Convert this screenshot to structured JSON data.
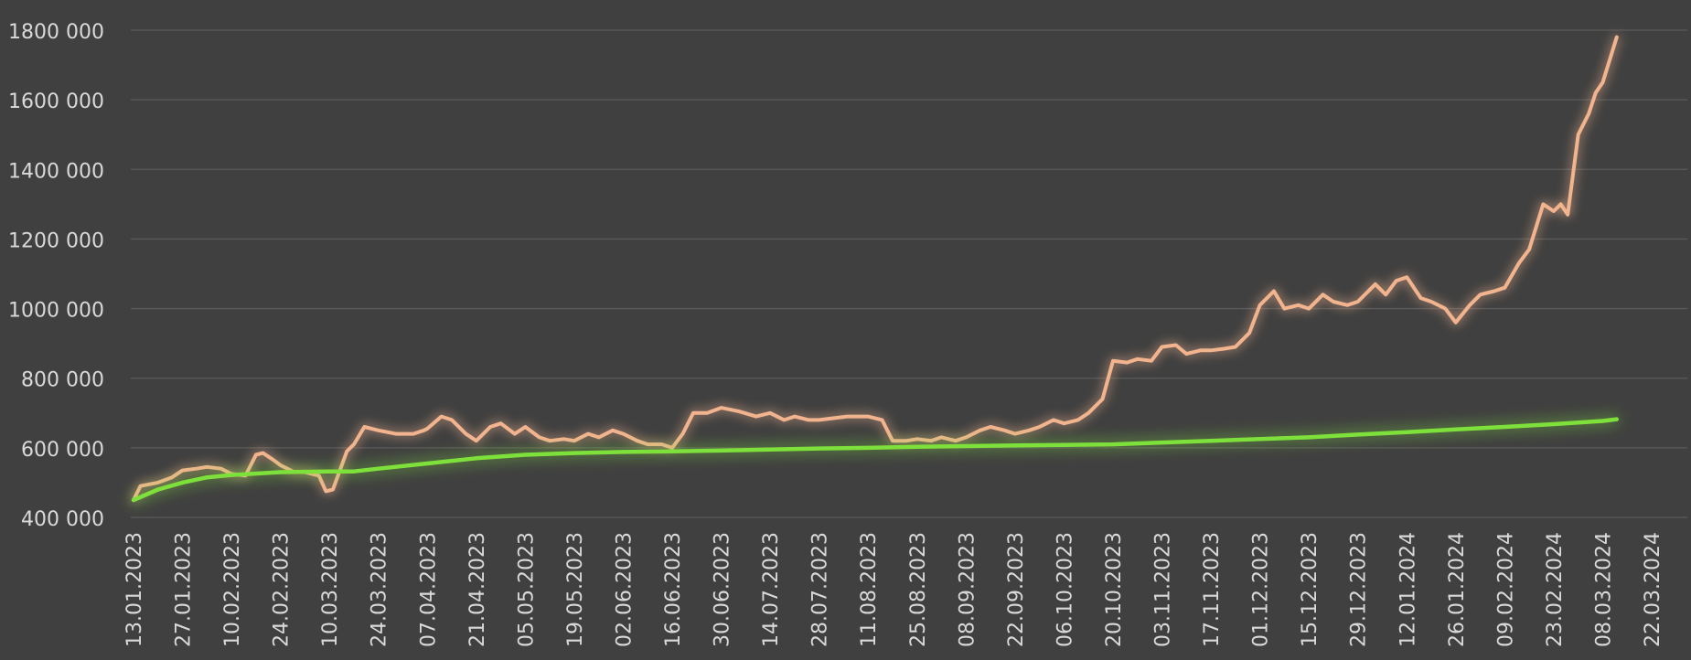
{
  "chart_data": {
    "type": "line",
    "title": "",
    "xlabel": "",
    "ylabel": "",
    "ylim": [
      400000,
      1800000
    ],
    "grid": true,
    "legend": "none",
    "colors": {
      "background": "#404040",
      "grid": "#5a5a5a",
      "tick_text": "#d9d9d9",
      "series_portfolio": "#f2b48e",
      "series_invested": "#7ee03a"
    },
    "y_ticks": [
      {
        "value": 400000,
        "label": "400 000"
      },
      {
        "value": 600000,
        "label": "600 000"
      },
      {
        "value": 800000,
        "label": "800 000"
      },
      {
        "value": 1000000,
        "label": "1000 000"
      },
      {
        "value": 1200000,
        "label": "1200 000"
      },
      {
        "value": 1400000,
        "label": "1400 000"
      },
      {
        "value": 1600000,
        "label": "1600 000"
      },
      {
        "value": 1800000,
        "label": "1800 000"
      }
    ],
    "x_ticks": [
      "13.01.2023",
      "27.01.2023",
      "10.02.2023",
      "24.02.2023",
      "10.03.2023",
      "24.03.2023",
      "07.04.2023",
      "21.04.2023",
      "05.05.2023",
      "19.05.2023",
      "02.06.2023",
      "16.06.2023",
      "30.06.2023",
      "14.07.2023",
      "28.07.2023",
      "11.08.2023",
      "25.08.2023",
      "08.09.2023",
      "22.09.2023",
      "06.10.2023",
      "20.10.2023",
      "03.11.2023",
      "17.11.2023",
      "01.12.2023",
      "15.12.2023",
      "29.12.2023",
      "12.01.2024",
      "26.01.2024",
      "09.02.2024",
      "23.02.2024",
      "08.03.2024",
      "22.03.2024"
    ],
    "series": [
      {
        "x": [
          "13.01.2023",
          "15.01.2023",
          "20.01.2023",
          "24.01.2023",
          "27.01.2023",
          "31.01.2023",
          "03.02.2023",
          "07.02.2023",
          "10.02.2023",
          "14.02.2023",
          "17.02.2023",
          "19.02.2023",
          "22.02.2023",
          "24.02.2023",
          "28.02.2023",
          "03.03.2023",
          "07.03.2023",
          "09.03.2023",
          "11.03.2023",
          "15.03.2023",
          "17.03.2023",
          "20.03.2023",
          "24.03.2023",
          "29.03.2023",
          "03.04.2023",
          "06.04.2023",
          "07.04.2023",
          "11.04.2023",
          "14.04.2023",
          "18.04.2023",
          "21.04.2023",
          "25.04.2023",
          "28.04.2023",
          "02.05.2023",
          "05.05.2023",
          "09.05.2023",
          "12.05.2023",
          "16.05.2023",
          "19.05.2023",
          "23.05.2023",
          "26.05.2023",
          "30.05.2023",
          "02.06.2023",
          "06.06.2023",
          "09.06.2023",
          "13.06.2023",
          "16.06.2023",
          "19.06.2023",
          "22.06.2023",
          "26.06.2023",
          "30.06.2023",
          "05.07.2023",
          "10.07.2023",
          "14.07.2023",
          "18.07.2023",
          "21.07.2023",
          "25.07.2023",
          "28.07.2023",
          "01.08.2023",
          "05.08.2023",
          "08.08.2023",
          "11.08.2023",
          "15.08.2023",
          "18.08.2023",
          "22.08.2023",
          "25.08.2023",
          "29.08.2023",
          "01.09.2023",
          "05.09.2023",
          "08.09.2023",
          "12.09.2023",
          "15.09.2023",
          "19.09.2023",
          "22.09.2023",
          "26.09.2023",
          "29.09.2023",
          "03.10.2023",
          "06.10.2023",
          "10.10.2023",
          "13.10.2023",
          "17.10.2023",
          "20.10.2023",
          "24.10.2023",
          "27.10.2023",
          "31.10.2023",
          "03.11.2023",
          "07.11.2023",
          "10.11.2023",
          "14.11.2023",
          "17.11.2023",
          "21.11.2023",
          "24.11.2023",
          "28.11.2023",
          "01.12.2023",
          "05.12.2023",
          "08.12.2023",
          "12.12.2023",
          "15.12.2023",
          "19.12.2023",
          "22.12.2023",
          "26.12.2023",
          "29.12.2023",
          "03.01.2024",
          "06.01.2024",
          "09.01.2024",
          "12.01.2024",
          "16.01.2024",
          "19.01.2024",
          "23.01.2024",
          "26.01.2024",
          "30.01.2024",
          "02.02.2024",
          "06.02.2024",
          "09.02.2024",
          "13.02.2024",
          "16.02.2024",
          "20.02.2024",
          "23.02.2024",
          "25.02.2024",
          "27.02.2024",
          "01.03.2024",
          "04.03.2024",
          "06.03.2024",
          "08.03.2024",
          "12.03.2024"
        ],
        "values": [
          450000,
          490000,
          500000,
          515000,
          535000,
          540000,
          545000,
          540000,
          525000,
          520000,
          580000,
          585000,
          565000,
          550000,
          530000,
          530000,
          520000,
          475000,
          480000,
          590000,
          610000,
          660000,
          650000,
          640000,
          640000,
          650000,
          655000,
          690000,
          680000,
          640000,
          620000,
          660000,
          670000,
          640000,
          660000,
          630000,
          620000,
          625000,
          620000,
          640000,
          630000,
          650000,
          640000,
          620000,
          610000,
          610000,
          600000,
          640000,
          700000,
          700000,
          715000,
          705000,
          690000,
          700000,
          680000,
          690000,
          680000,
          680000,
          685000,
          690000,
          690000,
          690000,
          680000,
          620000,
          620000,
          625000,
          620000,
          630000,
          620000,
          630000,
          650000,
          660000,
          650000,
          640000,
          650000,
          660000,
          680000,
          670000,
          680000,
          700000,
          740000,
          850000,
          845000,
          855000,
          850000,
          890000,
          895000,
          870000,
          880000,
          880000,
          885000,
          890000,
          930000,
          1010000,
          1050000,
          1000000,
          1010000,
          1000000,
          1040000,
          1020000,
          1010000,
          1020000,
          1070000,
          1040000,
          1080000,
          1090000,
          1030000,
          1020000,
          1000000,
          960000,
          1010000,
          1040000,
          1050000,
          1060000,
          1130000,
          1170000,
          1300000,
          1280000,
          1300000,
          1270000,
          1500000,
          1560000,
          1620000,
          1650000,
          1780000
        ]
      },
      {
        "x": [
          "13.01.2023",
          "20.01.2023",
          "27.01.2023",
          "03.02.2023",
          "10.02.2023",
          "24.02.2023",
          "10.03.2023",
          "17.03.2023",
          "24.03.2023",
          "07.04.2023",
          "21.04.2023",
          "05.05.2023",
          "19.05.2023",
          "02.06.2023",
          "16.06.2023",
          "30.06.2023",
          "14.07.2023",
          "28.07.2023",
          "11.08.2023",
          "25.08.2023",
          "08.09.2023",
          "22.09.2023",
          "06.10.2023",
          "20.10.2023",
          "03.11.2023",
          "17.11.2023",
          "01.12.2023",
          "15.12.2023",
          "29.12.2023",
          "12.01.2024",
          "26.01.2024",
          "09.02.2024",
          "23.02.2024",
          "08.03.2024",
          "12.03.2024"
        ],
        "values": [
          450000,
          480000,
          500000,
          515000,
          522000,
          530000,
          532000,
          532000,
          540000,
          555000,
          570000,
          580000,
          585000,
          588000,
          590000,
          592000,
          595000,
          598000,
          600000,
          603000,
          605000,
          607000,
          608000,
          610000,
          615000,
          620000,
          625000,
          630000,
          638000,
          645000,
          653000,
          660000,
          668000,
          677000,
          682000
        ]
      }
    ]
  }
}
